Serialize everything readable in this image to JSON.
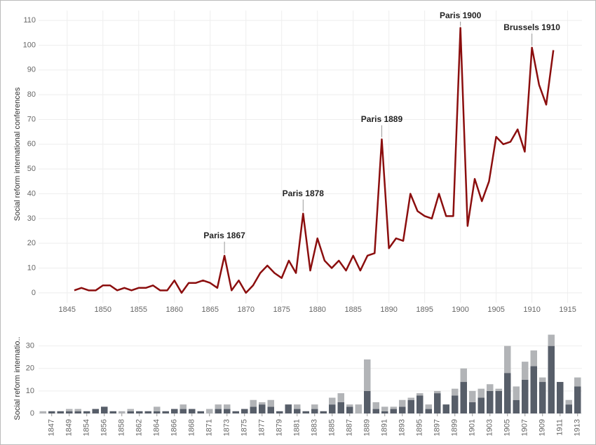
{
  "chart_data": [
    {
      "type": "line",
      "y_label": "Social reform international conferences",
      "x": [
        1846,
        1847,
        1848,
        1849,
        1850,
        1851,
        1852,
        1853,
        1854,
        1855,
        1856,
        1857,
        1858,
        1859,
        1860,
        1861,
        1862,
        1863,
        1864,
        1865,
        1866,
        1867,
        1868,
        1869,
        1870,
        1871,
        1872,
        1873,
        1874,
        1875,
        1876,
        1877,
        1878,
        1879,
        1880,
        1881,
        1882,
        1883,
        1884,
        1885,
        1886,
        1887,
        1888,
        1889,
        1890,
        1891,
        1892,
        1893,
        1894,
        1895,
        1896,
        1897,
        1898,
        1899,
        1900,
        1901,
        1902,
        1903,
        1904,
        1905,
        1906,
        1907,
        1908,
        1909,
        1910,
        1911,
        1912,
        1913
      ],
      "series": [
        {
          "color": "#8b0e0e",
          "values": [
            1,
            2,
            1,
            1,
            3,
            3,
            1,
            2,
            1,
            2,
            2,
            3,
            1,
            1,
            5,
            0,
            4,
            4,
            5,
            4,
            2,
            15,
            1,
            5,
            0,
            3,
            8,
            11,
            8,
            6,
            13,
            8,
            32,
            9,
            22,
            13,
            10,
            13,
            9,
            15,
            9,
            15,
            16,
            62,
            18,
            22,
            21,
            40,
            33,
            31,
            30,
            40,
            31,
            31,
            107,
            27,
            46,
            37,
            45,
            63,
            60,
            61,
            66,
            57,
            99,
            84,
            76,
            98
          ]
        }
      ],
      "annotations": [
        {
          "label": "Paris 1867",
          "x": 1867
        },
        {
          "label": "Paris 1878",
          "x": 1878
        },
        {
          "label": "Paris 1889",
          "x": 1889
        },
        {
          "label": "Paris 1900",
          "x": 1900
        },
        {
          "label": "Brussels 1910",
          "x": 1910
        }
      ],
      "xlim": [
        1841,
        1917
      ],
      "xticks": [
        1845,
        1850,
        1855,
        1860,
        1865,
        1870,
        1875,
        1880,
        1885,
        1890,
        1895,
        1900,
        1905,
        1910,
        1915
      ],
      "ylim": [
        -4,
        114
      ],
      "yticks": [
        0,
        10,
        20,
        30,
        40,
        50,
        60,
        70,
        80,
        90,
        100,
        110
      ],
      "grid": true
    },
    {
      "type": "bar",
      "stacked": true,
      "y_label": "Social reform internatio..",
      "categories": [
        null,
        "1847",
        null,
        "1849",
        null,
        "1854",
        null,
        "1856",
        null,
        "1858",
        null,
        "1862",
        null,
        "1864",
        null,
        "1866",
        null,
        "1868",
        null,
        "1871",
        null,
        "1873",
        null,
        "1875",
        null,
        "1877",
        null,
        "1879",
        null,
        "1881",
        null,
        "1883",
        null,
        "1885",
        null,
        "1887",
        null,
        "1889",
        null,
        "1891",
        null,
        "1893",
        null,
        "1895",
        null,
        "1897",
        null,
        "1899",
        null,
        "1901",
        null,
        "1903",
        null,
        "1905",
        null,
        "1907",
        null,
        "1909",
        null,
        "1911",
        null,
        "1913"
      ],
      "series": [
        {
          "color": "#575e69",
          "values": [
            0,
            1,
            1,
            1,
            1,
            1,
            2,
            3,
            1,
            0,
            1,
            1,
            1,
            1,
            1,
            2,
            2,
            2,
            1,
            0,
            2,
            2,
            1,
            2,
            3,
            4,
            3,
            1,
            4,
            2,
            1,
            2,
            1,
            4,
            5,
            3,
            0,
            10,
            2,
            1,
            2,
            3,
            6,
            8,
            2,
            9,
            4,
            8,
            14,
            5,
            7,
            10,
            10,
            18,
            6,
            15,
            21,
            14,
            30,
            14,
            4,
            12
          ]
        },
        {
          "color": "#b2b4b7",
          "values": [
            1,
            0,
            0,
            1,
            1,
            0,
            0,
            0,
            0,
            1,
            1,
            0,
            0,
            2,
            0,
            0,
            2,
            0,
            0,
            2,
            2,
            2,
            0,
            0,
            3,
            1,
            3,
            0,
            0,
            2,
            0,
            2,
            0,
            3,
            4,
            1,
            4,
            14,
            3,
            2,
            1,
            3,
            1,
            1,
            2,
            1,
            0,
            3,
            6,
            5,
            4,
            3,
            1,
            12,
            6,
            8,
            7,
            2,
            5,
            0,
            2,
            4
          ]
        }
      ],
      "ylim": [
        0,
        33
      ],
      "yticks": [
        0,
        10,
        20,
        30
      ],
      "grid": true
    }
  ]
}
